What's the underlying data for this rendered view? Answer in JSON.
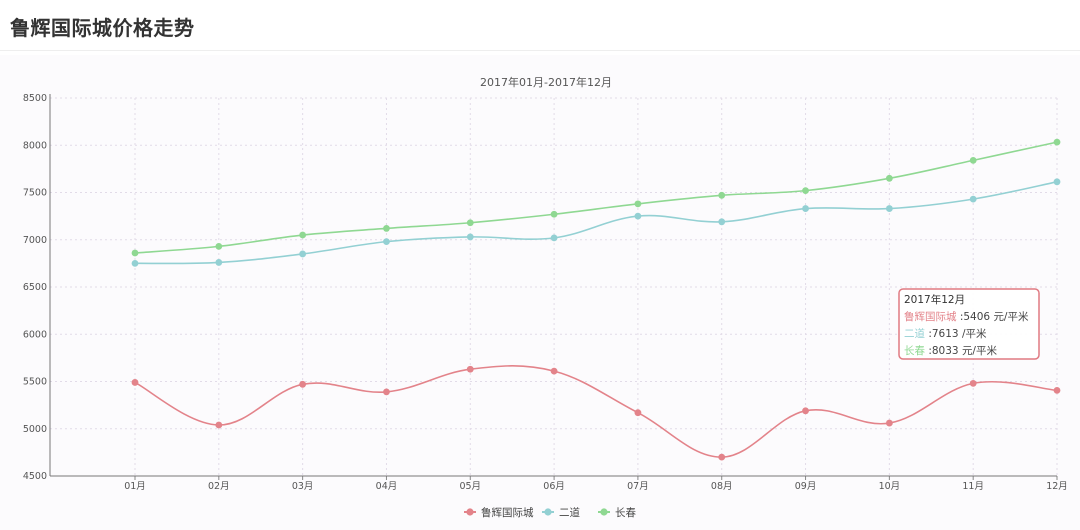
{
  "page": {
    "title": "鲁辉国际城价格走势"
  },
  "chart_data": {
    "type": "line",
    "subtitle": "2017年01月-2017年12月",
    "categories": [
      "01月",
      "02月",
      "03月",
      "04月",
      "05月",
      "06月",
      "07月",
      "08月",
      "09月",
      "10月",
      "11月",
      "12月"
    ],
    "ylim": [
      4500,
      8500
    ],
    "yticks": [
      4500,
      5000,
      5500,
      6000,
      6500,
      7000,
      7500,
      8000,
      8500
    ],
    "grid": true,
    "smooth": true,
    "legend_position": "bottom-center",
    "series": [
      {
        "name": "鲁辉国际城",
        "color": "#e3838a",
        "values": [
          5490,
          5040,
          5470,
          5390,
          5630,
          5610,
          5170,
          4700,
          5190,
          5060,
          5480,
          5406
        ]
      },
      {
        "name": "二道",
        "color": "#93d0d3",
        "values": [
          6750,
          6760,
          6850,
          6980,
          7030,
          7020,
          7250,
          7190,
          7330,
          7330,
          7430,
          7613
        ]
      },
      {
        "name": "长春",
        "color": "#8fd892",
        "values": [
          6860,
          6930,
          7050,
          7120,
          7180,
          7270,
          7380,
          7470,
          7520,
          7650,
          7840,
          8033
        ]
      }
    ],
    "tooltip": {
      "title": "2017年12月",
      "rows": [
        {
          "label": "鲁辉国际城",
          "value": "5406",
          "unit": "元/平米"
        },
        {
          "label": "二道",
          "value": "7613",
          "unit": "/平米"
        },
        {
          "label": "长春",
          "value": "8033",
          "unit": "元/平米"
        }
      ],
      "border_color": "#e07a82"
    }
  }
}
